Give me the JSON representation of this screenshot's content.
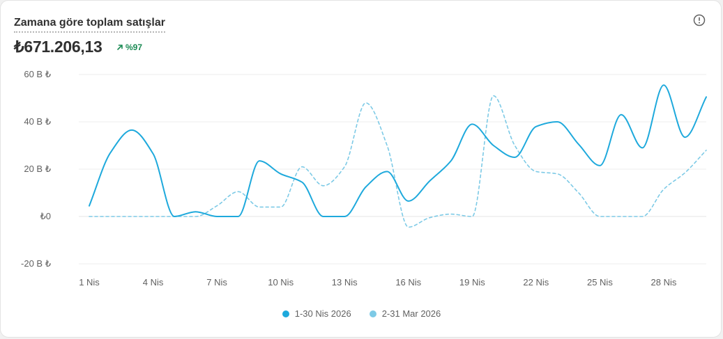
{
  "header": {
    "title": "Zamana göre toplam satışlar",
    "total": "₺671.206,13",
    "change": "%97",
    "info_icon": "info-circle-icon",
    "change_icon": "arrow-up-right-icon",
    "change_color": "#1a8a53"
  },
  "chart_data": {
    "type": "line",
    "x": [
      1,
      2,
      3,
      4,
      5,
      6,
      7,
      8,
      9,
      10,
      11,
      12,
      13,
      14,
      15,
      16,
      17,
      18,
      19,
      20,
      21,
      22,
      23,
      24,
      25,
      26,
      27,
      28,
      29,
      30
    ],
    "xticks": [
      {
        "x": 1,
        "label": "1 Nis"
      },
      {
        "x": 4,
        "label": "4 Nis"
      },
      {
        "x": 7,
        "label": "7 Nis"
      },
      {
        "x": 10,
        "label": "10 Nis"
      },
      {
        "x": 13,
        "label": "13 Nis"
      },
      {
        "x": 16,
        "label": "16 Nis"
      },
      {
        "x": 19,
        "label": "19 Nis"
      },
      {
        "x": 22,
        "label": "22 Nis"
      },
      {
        "x": 25,
        "label": "25 Nis"
      },
      {
        "x": 28,
        "label": "28 Nis"
      }
    ],
    "yticks": [
      {
        "y": 60,
        "label": "60 B ₺"
      },
      {
        "y": 40,
        "label": "40 B ₺"
      },
      {
        "y": 20,
        "label": "20 B ₺"
      },
      {
        "y": 0,
        "label": "₺0"
      },
      {
        "y": -20,
        "label": "-20 B ₺"
      }
    ],
    "ylim": [
      -20,
      60
    ],
    "grid": true,
    "legend_position": "bottom-center",
    "series": [
      {
        "name": "1-30 Nis 2026",
        "color": "#1ea9dc",
        "style": "solid",
        "values": [
          4.5,
          27,
          36.5,
          26.5,
          0,
          2,
          0,
          0,
          23.5,
          18,
          14.5,
          0,
          0,
          12.5,
          19,
          6.5,
          15,
          23.5,
          39,
          30,
          25,
          38,
          40,
          30.5,
          21.5,
          43,
          29,
          55.5,
          33.5,
          50.5
        ]
      },
      {
        "name": "2-31 Mar 2026",
        "color": "#7dcae6",
        "style": "dashed",
        "values": [
          0,
          0,
          0,
          0,
          0,
          0,
          4.5,
          10.5,
          4,
          4,
          21,
          13,
          21,
          48,
          30,
          -4.5,
          -0.5,
          1,
          0,
          51,
          30,
          19,
          18,
          10,
          0,
          0,
          0,
          11.5,
          18.5,
          28
        ]
      }
    ]
  }
}
